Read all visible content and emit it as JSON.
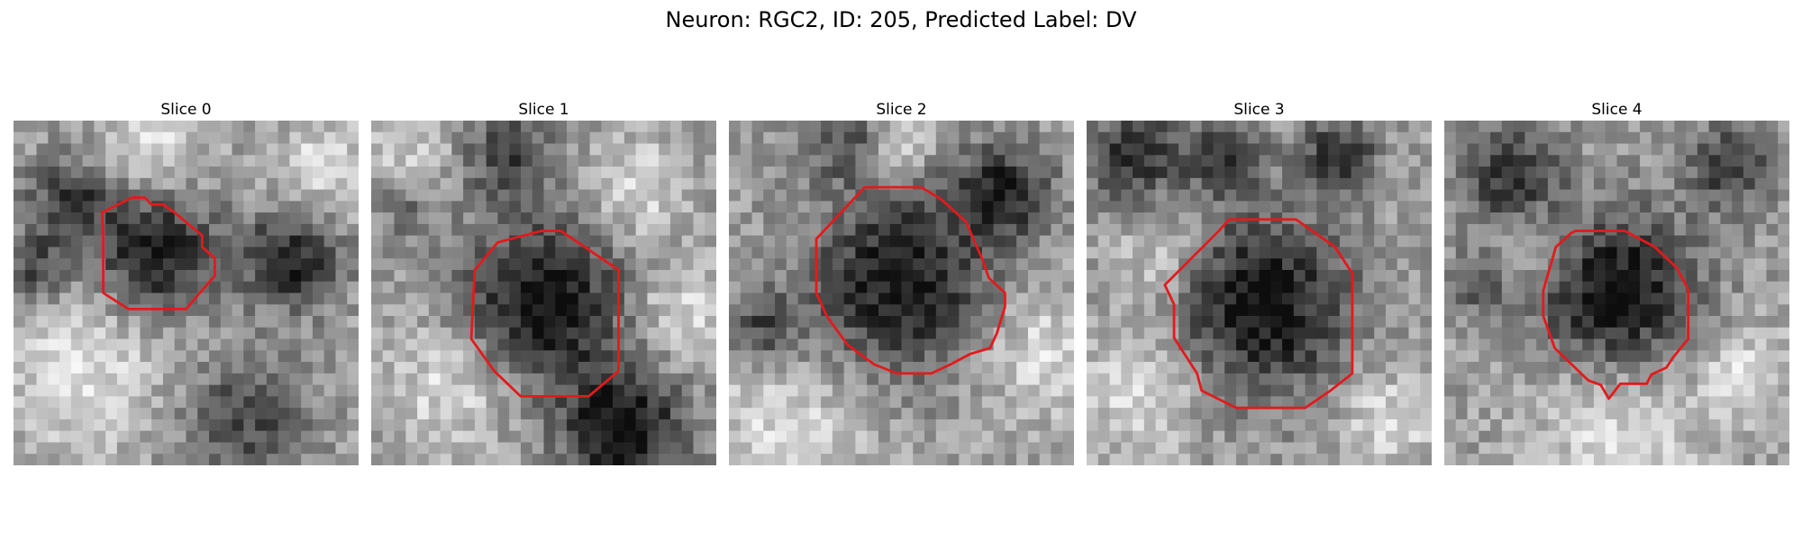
{
  "figure": {
    "title": "Neuron: RGC2, ID: 205, Predicted Label: DV"
  },
  "panels": [
    {
      "title": "Slice 0"
    },
    {
      "title": "Slice 1"
    },
    {
      "title": "Slice 2"
    },
    {
      "title": "Slice 3"
    },
    {
      "title": "Slice 4"
    }
  ],
  "colors": {
    "contour": "#e31a1c",
    "background": "#ffffff"
  }
}
